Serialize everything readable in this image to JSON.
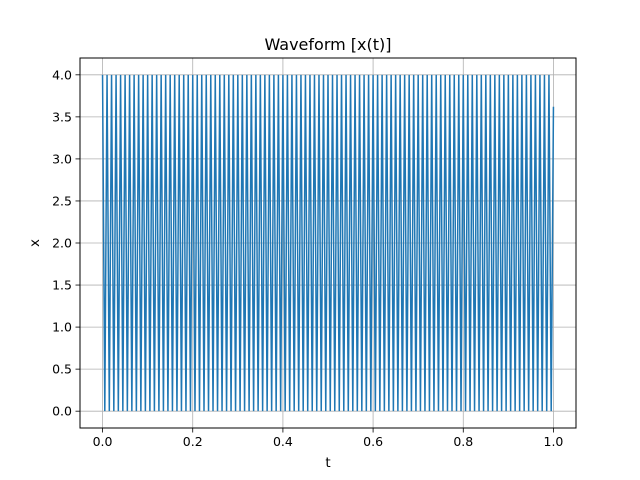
{
  "chart_data": {
    "type": "line",
    "title": "Waveform [x(t)]",
    "xlabel": "t",
    "ylabel": "x",
    "xlim": [
      -0.05,
      1.05
    ],
    "ylim": [
      -0.2,
      4.2
    ],
    "x_ticks": [
      0.0,
      0.2,
      0.4,
      0.6,
      0.8,
      1.0
    ],
    "x_tick_labels": [
      "0.0",
      "0.2",
      "0.4",
      "0.6",
      "0.8",
      "1.0"
    ],
    "y_ticks": [
      0.0,
      0.5,
      1.0,
      1.5,
      2.0,
      2.5,
      3.0,
      3.5,
      4.0
    ],
    "y_tick_labels": [
      "0.0",
      "0.5",
      "1.0",
      "1.5",
      "2.0",
      "2.5",
      "3.0",
      "3.5",
      "4.0"
    ],
    "grid": true,
    "legend": "none",
    "series": [
      {
        "waveform": "periodic spike train",
        "t_start": 0.0,
        "t_end": 1.0,
        "cycles": 100,
        "min": 0.0,
        "max": 4.0,
        "end_value": 3.62,
        "color": "#1f77b4"
      }
    ]
  }
}
